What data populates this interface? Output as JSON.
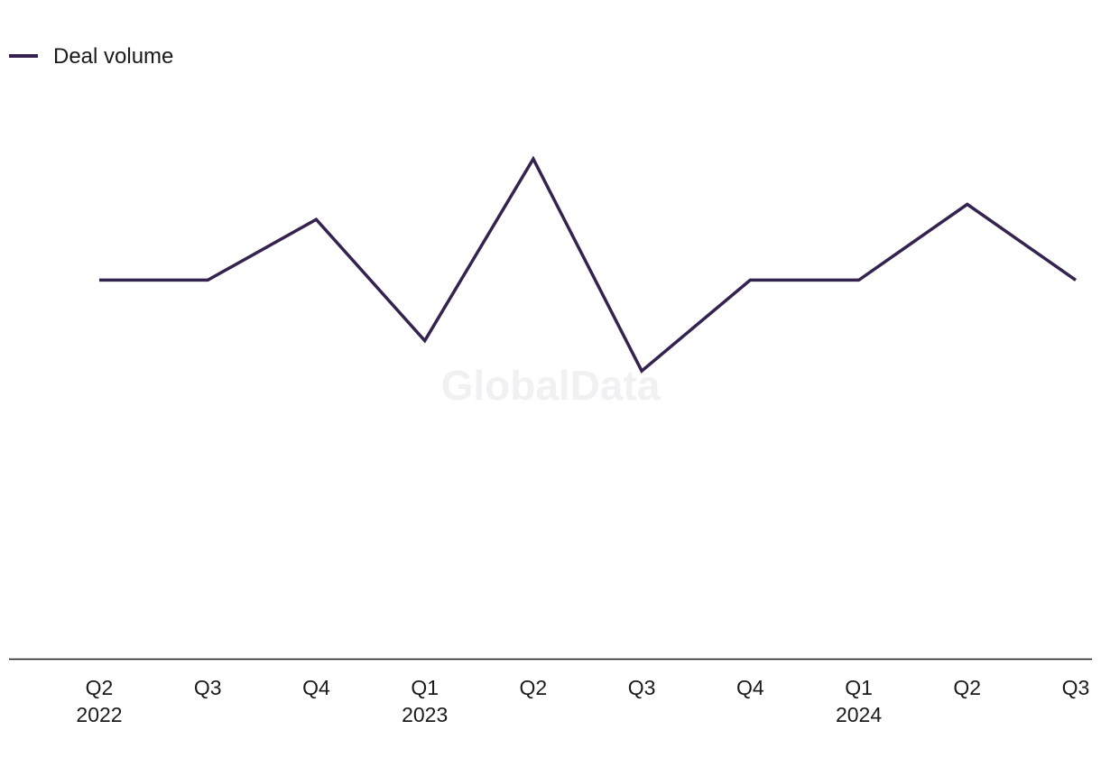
{
  "chart_data": {
    "type": "line",
    "categories": [
      "Q2",
      "Q3",
      "Q4",
      "Q1",
      "Q2",
      "Q3",
      "Q4",
      "Q1",
      "Q2",
      "Q3"
    ],
    "year_labels": [
      "2022",
      "",
      "",
      "2023",
      "",
      "",
      "",
      "2024",
      "",
      ""
    ],
    "series": [
      {
        "name": "Deal volume",
        "color": "#35234f",
        "values": [
          25,
          25,
          29,
          21,
          33,
          19,
          25,
          25,
          30,
          25
        ]
      }
    ],
    "ylim": [
      0,
      42
    ],
    "grid": false,
    "legend_position": "top-left",
    "watermark": "GlobalData"
  }
}
